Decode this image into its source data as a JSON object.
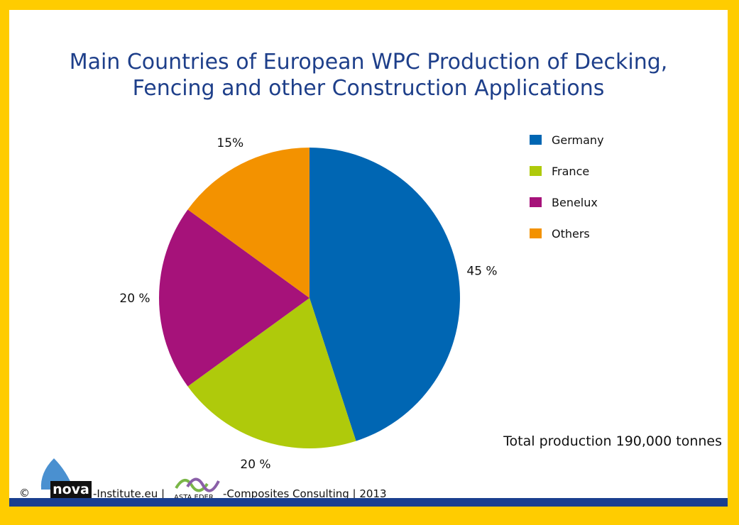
{
  "chart_data": {
    "type": "pie",
    "title_lines": [
      "Main Countries of European WPC Production of Decking,",
      "Fencing and other Construction Applications"
    ],
    "categories": [
      "Germany",
      "France",
      "Benelux",
      "Others"
    ],
    "values": [
      45,
      20,
      20,
      15
    ],
    "data_labels": [
      "45 %",
      "20 %",
      "20 %",
      "15%"
    ],
    "colors": [
      "#0066b3",
      "#afca0b",
      "#a6127a",
      "#f39200"
    ],
    "legend_position": "right",
    "annotation": "Total production 190,000 tonnes"
  },
  "footer": {
    "copyright_symbol": "©",
    "nova_word": "nova",
    "institute_text": "-Institute.eu |",
    "asta_word": "ASTA EDER",
    "consulting_text": "-Composites Consulting | 2013"
  },
  "colors": {
    "frame": "#ffcc00",
    "bottom_bar": "#1a3f8f",
    "title": "#1e3f8a"
  }
}
